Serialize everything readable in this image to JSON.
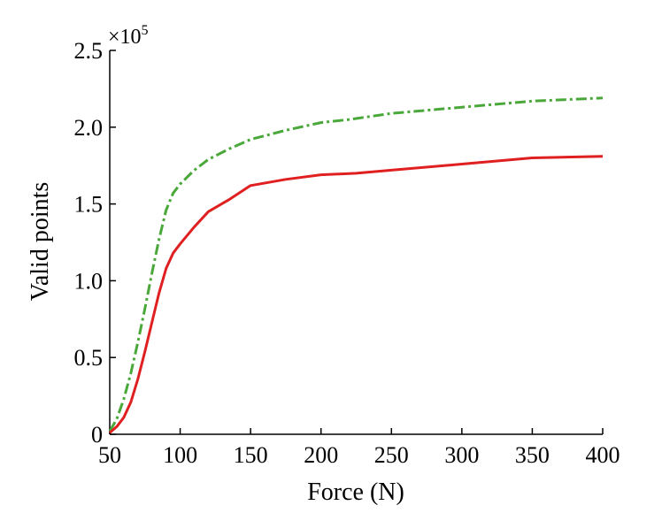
{
  "chart_data": {
    "type": "line",
    "title": "",
    "xlabel": "Force (N)",
    "ylabel": "Valid points",
    "y_multiplier": {
      "base": "×10",
      "exponent": "5"
    },
    "xlim": [
      50,
      400
    ],
    "ylim": [
      0,
      2.5
    ],
    "x_ticks": [
      50,
      100,
      150,
      200,
      250,
      300,
      350,
      400
    ],
    "x_tick_labels": [
      "50",
      "100",
      "150",
      "200",
      "250",
      "300",
      "350",
      "400"
    ],
    "y_ticks": [
      0,
      0.5,
      1.0,
      1.5,
      2.0,
      2.5
    ],
    "y_tick_labels": [
      "0",
      "0.5",
      "1.0",
      "1.5",
      "2.0",
      "2.5"
    ],
    "grid": false,
    "legend": null,
    "series": [
      {
        "color": "#4aa83a",
        "style": "dashdot",
        "x": [
          50,
          55,
          60,
          65,
          70,
          75,
          80,
          85,
          90,
          95,
          100,
          110,
          120,
          135,
          150,
          175,
          200,
          220,
          250,
          300,
          350,
          400
        ],
        "y": [
          0.02,
          0.1,
          0.23,
          0.4,
          0.6,
          0.82,
          1.05,
          1.27,
          1.46,
          1.57,
          1.63,
          1.72,
          1.79,
          1.86,
          1.92,
          1.98,
          2.03,
          2.05,
          2.09,
          2.13,
          2.17,
          2.19
        ]
      },
      {
        "color": "#e02020",
        "style": "solid",
        "x": [
          50,
          55,
          60,
          65,
          70,
          75,
          80,
          85,
          90,
          95,
          100,
          110,
          120,
          135,
          150,
          175,
          200,
          225,
          250,
          300,
          350,
          400
        ],
        "y": [
          0.01,
          0.05,
          0.11,
          0.21,
          0.36,
          0.54,
          0.73,
          0.92,
          1.08,
          1.18,
          1.24,
          1.35,
          1.45,
          1.53,
          1.62,
          1.66,
          1.69,
          1.7,
          1.72,
          1.76,
          1.8,
          1.81
        ]
      }
    ]
  }
}
